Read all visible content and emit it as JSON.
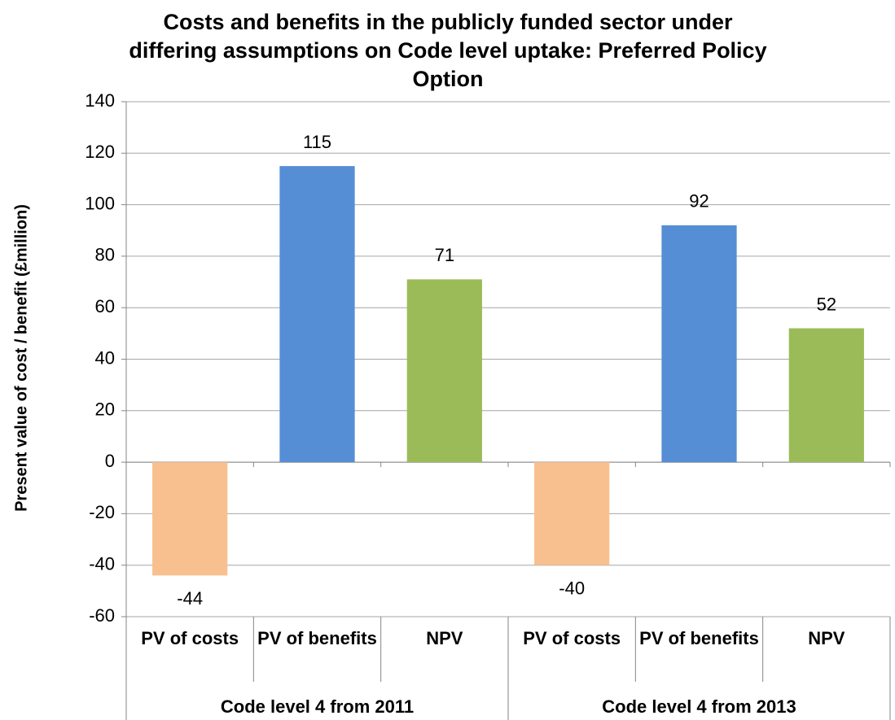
{
  "chart_data": {
    "type": "bar",
    "title": "Costs and benefits in the publicly funded sector under differing assumptions on Code level uptake: Preferred Policy Option",
    "y_label": "Present value of cost / benefit (£million)",
    "categories": [
      "PV of costs",
      "PV of benefits",
      "NPV",
      "PV of costs",
      "PV of benefits",
      "NPV"
    ],
    "groups": [
      "Code level 4 from 2011",
      "Code level 4 from 2013"
    ],
    "values": [
      -44,
      115,
      71,
      -40,
      92,
      52
    ],
    "colors": [
      "#f9c08f",
      "#558ed5",
      "#9bbb59",
      "#f9c08f",
      "#558ed5",
      "#9bbb59"
    ],
    "ylim": [
      -60,
      140
    ],
    "yticks": [
      -60,
      -40,
      -20,
      0,
      20,
      40,
      60,
      80,
      100,
      120,
      140
    ],
    "grid": true
  }
}
